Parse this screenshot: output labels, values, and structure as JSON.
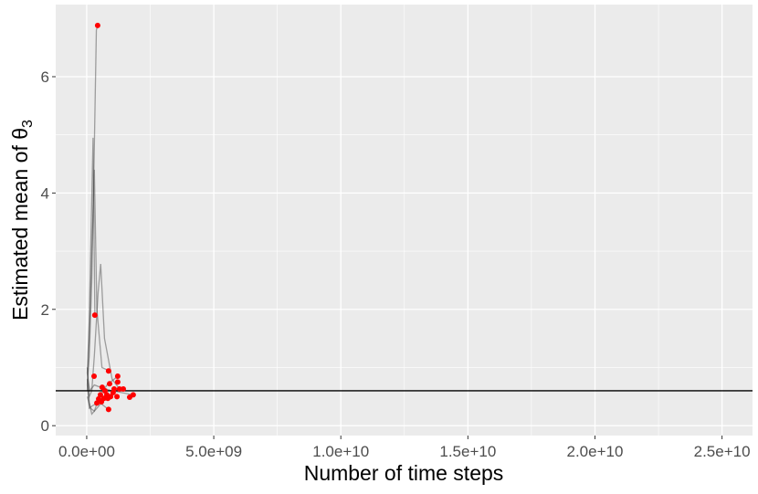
{
  "chart_data": {
    "type": "scatter",
    "x_label": "Number of time steps",
    "y_label": "Estimated mean of θ",
    "y_label_sub": "3",
    "xlim": [
      -1220000000.0,
      26200000000.0
    ],
    "ylim": [
      -0.17,
      7.24
    ],
    "xticks": [
      {
        "value": 0,
        "label": "0.0e+00"
      },
      {
        "value": 5000000000.0,
        "label": "5.0e+09"
      },
      {
        "value": 10000000000.0,
        "label": "1.0e+10"
      },
      {
        "value": 15000000000.0,
        "label": "1.5e+10"
      },
      {
        "value": 20000000000.0,
        "label": "2.0e+10"
      },
      {
        "value": 25000000000.0,
        "label": "2.5e+10"
      }
    ],
    "yticks": [
      0,
      2,
      4,
      6
    ],
    "grid": true,
    "minor_grid": true,
    "hline": 0.6,
    "hline_color": "#000000",
    "line_color": "rgba(60,60,60,0.45)",
    "traces": [
      {
        "x": [
          20000000.0,
          100000000.0,
          200000000.0,
          300000000.0,
          380000000.0,
          430000000.0
        ],
        "y": [
          0.7,
          1.2,
          2.5,
          4.8,
          6.8,
          6.88
        ]
      },
      {
        "x": [
          20000000.0,
          100000000.0,
          180000000.0,
          250000000.0,
          320000000.0
        ],
        "y": [
          0.9,
          1.8,
          3.5,
          4.95,
          1.9
        ]
      },
      {
        "x": [
          20000000.0,
          100000000.0,
          200000000.0,
          300000000.0,
          400000000.0,
          600000000.0,
          900000000.0
        ],
        "y": [
          0.6,
          1.5,
          3.0,
          4.4,
          2.0,
          1.0,
          0.94
        ]
      },
      {
        "x": [
          20000000.0,
          100000000.0,
          200000000.0,
          300000000.0,
          450000000.0,
          550000000.0,
          700000000.0,
          1000000000.0,
          1290000000.0
        ],
        "y": [
          0.8,
          0.5,
          0.6,
          1.2,
          2.3,
          2.78,
          1.5,
          0.8,
          0.63
        ]
      },
      {
        "x": [
          20000000.0,
          150000000.0,
          300000000.0,
          500000000.0,
          800000000.0,
          1220000000.0
        ],
        "y": [
          0.5,
          0.3,
          0.25,
          0.5,
          0.7,
          0.85
        ]
      },
      {
        "x": [
          20000000.0,
          100000000.0,
          200000000.0,
          400000000.0,
          700000000.0,
          1040000000.0
        ],
        "y": [
          1.0,
          0.4,
          0.2,
          0.3,
          0.45,
          0.57
        ]
      },
      {
        "x": [
          20000000.0,
          100000000.0,
          250000000.0,
          500000000.0,
          860000000.0
        ],
        "y": [
          0.7,
          0.3,
          0.35,
          0.4,
          0.28
        ]
      },
      {
        "x": [
          20000000.0,
          120000000.0,
          300000000.0,
          600000000.0,
          1000000000.0,
          1830000000.0
        ],
        "y": [
          0.9,
          0.6,
          0.7,
          0.65,
          0.6,
          0.53
        ]
      }
    ],
    "points": {
      "color": "#ff0000",
      "x": [
        430000000.0,
        320000000.0,
        290000000.0,
        860000000.0,
        1220000000.0,
        1220000000.0,
        900000000.0,
        610000000.0,
        1290000000.0,
        1440000000.0,
        720000000.0,
        1040000000.0,
        540000000.0,
        790000000.0,
        1190000000.0,
        1830000000.0,
        1690000000.0,
        470000000.0,
        680000000.0,
        940000000.0,
        400000000.0,
        830000000.0,
        580000000.0,
        860000000.0,
        1080000000.0
      ],
      "y": [
        6.88,
        1.9,
        0.85,
        0.94,
        0.85,
        0.75,
        0.72,
        0.66,
        0.63,
        0.63,
        0.6,
        0.57,
        0.53,
        0.53,
        0.5,
        0.53,
        0.49,
        0.46,
        0.47,
        0.5,
        0.39,
        0.47,
        0.41,
        0.28,
        0.63
      ]
    }
  }
}
